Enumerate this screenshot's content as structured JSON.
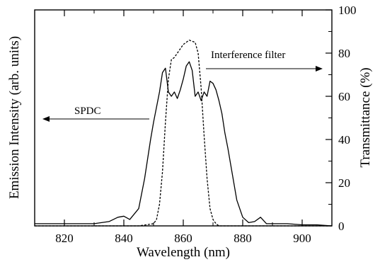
{
  "chart_data": {
    "type": "line",
    "xlabel": "Wavelength (nm)",
    "ylabel_left": "Emission Intensity (arb. units)",
    "ylabel_right": "Transmittance (%)",
    "xlim": [
      810,
      910
    ],
    "ylim_left": [
      0,
      1
    ],
    "ylim_right": [
      0,
      100
    ],
    "x_ticks": [
      820,
      840,
      860,
      880,
      900
    ],
    "y_right_ticks": [
      0,
      20,
      40,
      60,
      80,
      100
    ],
    "grid": false,
    "annotations": [
      {
        "text": "SPDC",
        "arrow": "left",
        "series": "SPDC"
      },
      {
        "text": "Interference filter",
        "arrow": "right",
        "series": "Interference filter"
      }
    ],
    "series": [
      {
        "name": "SPDC",
        "axis": "left",
        "style": "solid",
        "x": [
          810,
          820,
          830,
          835,
          838,
          840,
          842,
          845,
          847,
          849,
          850,
          851,
          852,
          853,
          854,
          855,
          856,
          857,
          858,
          859,
          860,
          861,
          862,
          863,
          864,
          865,
          866,
          867,
          868,
          869,
          870,
          871,
          872,
          873,
          874,
          875,
          876,
          877,
          878,
          880,
          882,
          884,
          886,
          888,
          890,
          895,
          900,
          905,
          910
        ],
        "y": [
          0.01,
          0.01,
          0.01,
          0.02,
          0.04,
          0.045,
          0.03,
          0.08,
          0.22,
          0.4,
          0.48,
          0.55,
          0.62,
          0.71,
          0.73,
          0.62,
          0.6,
          0.62,
          0.59,
          0.63,
          0.68,
          0.74,
          0.76,
          0.72,
          0.6,
          0.62,
          0.58,
          0.62,
          0.6,
          0.67,
          0.66,
          0.63,
          0.58,
          0.52,
          0.43,
          0.36,
          0.28,
          0.2,
          0.12,
          0.04,
          0.015,
          0.02,
          0.04,
          0.01,
          0.01,
          0.01,
          0.005,
          0.005,
          0.0
        ]
      },
      {
        "name": "Interference filter",
        "axis": "right",
        "style": "dashed",
        "x": [
          810,
          845,
          850,
          851,
          852,
          853,
          854,
          855,
          856,
          857,
          858,
          860,
          862,
          864,
          865,
          866,
          867,
          868,
          869,
          870,
          871,
          872,
          875,
          910
        ],
        "y": [
          0,
          0,
          1,
          3,
          10,
          25,
          48,
          68,
          77,
          78,
          80,
          84,
          86,
          85,
          80,
          64,
          42,
          22,
          8,
          3,
          1,
          0,
          0,
          0
        ]
      }
    ]
  }
}
